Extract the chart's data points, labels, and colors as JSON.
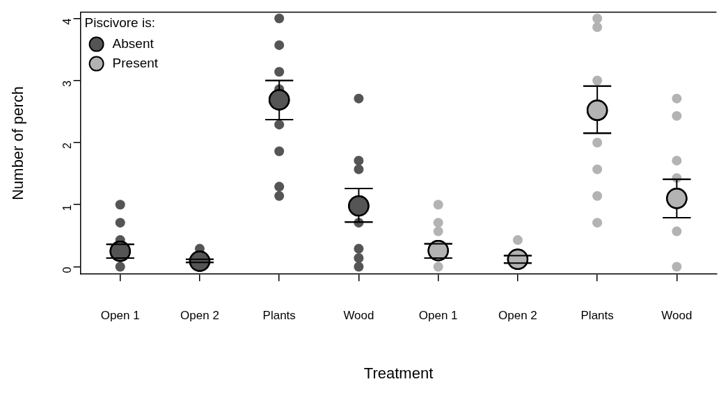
{
  "chart_data": {
    "type": "scatter",
    "xlabel": "Treatment",
    "ylabel": "Number of perch",
    "legend_title": "Piscivore is:",
    "legend": "top left",
    "marker": "circle",
    "grid": false,
    "categories": [
      "Open 1",
      "Open 2",
      "Plants",
      "Wood",
      "Open 1",
      "Open 2",
      "Plants",
      "Wood"
    ],
    "ylim": [
      -0.12,
      4.1
    ],
    "yticks": [
      0,
      1,
      2,
      3,
      4
    ],
    "series": [
      {
        "colors": [
          "#555555",
          "#555555",
          "#555555",
          "#555555",
          "#b3b3b3",
          "#b3b3b3",
          "#b3b3b3",
          "#b3b3b3"
        ],
        "values": [
          1.0,
          0.29,
          4.0,
          2.71,
          1.0,
          0.43,
          4.0,
          2.71
        ]
      },
      {
        "colors": [
          "#555555",
          "#555555",
          "#555555",
          "#555555",
          "#b3b3b3",
          "#b3b3b3",
          "#b3b3b3",
          "#b3b3b3"
        ],
        "values": [
          0.71,
          null,
          3.57,
          1.71,
          0.71,
          null,
          3.86,
          2.43
        ]
      },
      {
        "colors": [
          "#555555",
          "#555555",
          "#555555",
          "#555555",
          "#b3b3b3",
          "#b3b3b3",
          "#b3b3b3",
          "#b3b3b3"
        ],
        "values": [
          0.43,
          null,
          3.14,
          1.57,
          0.57,
          null,
          3.0,
          1.71
        ]
      },
      {
        "colors": [
          "#555555",
          "#555555",
          "#555555",
          "#555555",
          "#b3b3b3",
          "#b3b3b3",
          "#b3b3b3",
          "#b3b3b3"
        ],
        "values": [
          null,
          null,
          2.86,
          0.71,
          0,
          null,
          2.0,
          1.43
        ]
      },
      {
        "colors": [
          "#555555",
          "#555555",
          "#555555",
          "#555555",
          "#b3b3b3",
          "#b3b3b3",
          "#b3b3b3",
          "#b3b3b3"
        ],
        "values": [
          0,
          null,
          2.29,
          0.29,
          null,
          null,
          1.57,
          0.57
        ]
      },
      {
        "colors": [
          "#555555",
          "#555555",
          "#555555",
          "#555555",
          "#b3b3b3",
          "#b3b3b3",
          "#b3b3b3",
          "#b3b3b3"
        ],
        "values": [
          null,
          null,
          1.86,
          0.14,
          null,
          null,
          1.14,
          0
        ]
      },
      {
        "colors": [
          "#555555",
          "#555555",
          "#555555",
          "#555555",
          "#b3b3b3",
          "#b3b3b3",
          "#b3b3b3",
          "#b3b3b3"
        ],
        "values": [
          null,
          null,
          1.29,
          0,
          null,
          null,
          0.71,
          null
        ]
      },
      {
        "colors": [
          "#555555",
          "#555555",
          "#555555",
          "#555555",
          "#b3b3b3",
          "#b3b3b3",
          "#b3b3b3",
          "#b3b3b3"
        ],
        "values": [
          null,
          null,
          1.14,
          null,
          null,
          null,
          null,
          null
        ]
      },
      {
        "name": "Absent",
        "color": "#555555",
        "values": [
          0.25,
          0.09,
          2.69,
          0.98,
          null,
          null,
          null,
          null
        ],
        "errors": [
          [
            0.14,
            0.36
          ],
          [
            0.07,
            0.12
          ],
          [
            2.37,
            3.0
          ],
          [
            0.72,
            1.26
          ],
          null,
          null,
          null,
          null
        ]
      },
      {
        "name": "Present",
        "color": "#b3b3b3",
        "values": [
          null,
          null,
          null,
          null,
          0.26,
          0.12,
          2.52,
          1.1
        ],
        "errors": [
          null,
          null,
          null,
          null,
          [
            0.14,
            0.37
          ],
          [
            0.06,
            0.18
          ],
          [
            2.15,
            2.91
          ],
          [
            0.79,
            1.41
          ]
        ]
      }
    ]
  }
}
